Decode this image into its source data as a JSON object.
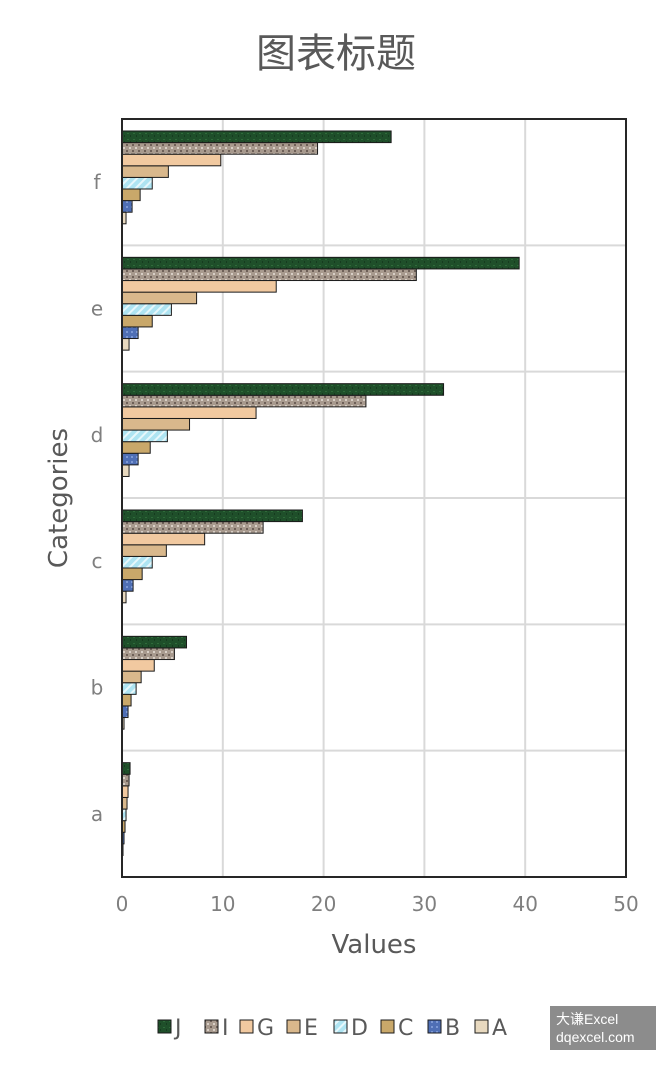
{
  "watermark": {
    "line1": "大谦Excel",
    "line2": "dqexcel.com"
  },
  "chart_data": {
    "type": "bar",
    "orientation": "horizontal",
    "title": "图表标题",
    "xlabel": "Values",
    "ylabel": "Categories",
    "xlim": [
      0,
      50
    ],
    "xticks": [
      0,
      10,
      20,
      30,
      40,
      50
    ],
    "grid": true,
    "legend_position": "bottom",
    "categories": [
      "a",
      "b",
      "c",
      "d",
      "e",
      "f"
    ],
    "series": [
      {
        "name": "A",
        "color": "#e8d9bf",
        "values": [
          0.1,
          0.2,
          0.4,
          0.7,
          0.7,
          0.4
        ]
      },
      {
        "name": "B",
        "color": "#4f6fb5",
        "values": [
          0.2,
          0.6,
          1.1,
          1.6,
          1.6,
          1.0
        ]
      },
      {
        "name": "C",
        "color": "#c9a86a",
        "values": [
          0.3,
          0.9,
          2.0,
          2.8,
          3.0,
          1.8
        ]
      },
      {
        "name": "D",
        "color": "#aee4f2",
        "values": [
          0.4,
          1.4,
          3.0,
          4.5,
          4.9,
          3.0
        ]
      },
      {
        "name": "E",
        "color": "#d9b88c",
        "values": [
          0.5,
          1.9,
          4.4,
          6.7,
          7.4,
          4.6
        ]
      },
      {
        "name": "G",
        "color": "#f1c9a0",
        "values": [
          0.6,
          3.2,
          8.2,
          13.3,
          15.3,
          9.8
        ]
      },
      {
        "name": "I",
        "color": "#a89a8e",
        "values": [
          0.7,
          5.2,
          14.0,
          24.2,
          29.2,
          19.4
        ]
      },
      {
        "name": "J",
        "color": "#1f4f2a",
        "values": [
          0.8,
          6.4,
          17.9,
          31.9,
          39.4,
          26.7
        ]
      }
    ]
  }
}
